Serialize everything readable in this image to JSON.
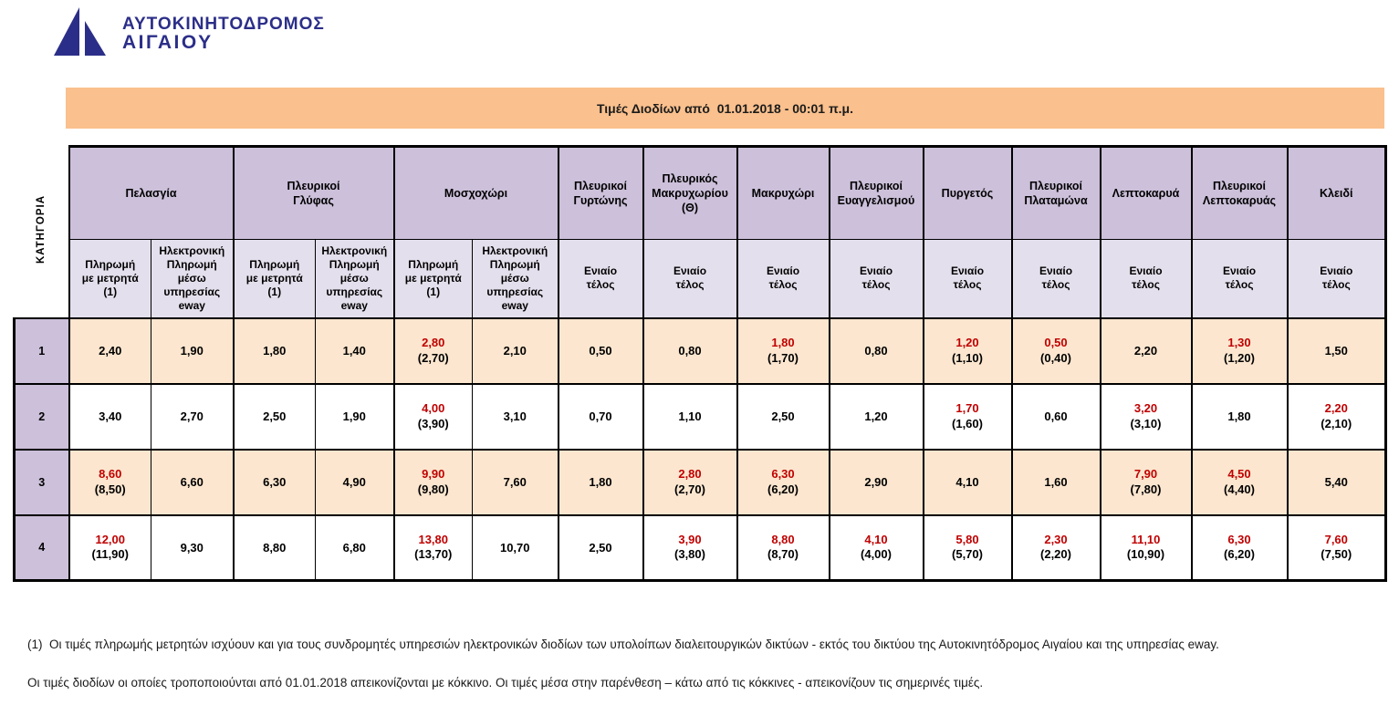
{
  "logo": {
    "line1": "ΑΥΤΟΚΙΝΗΤΟΔΡΟΜΟΣ",
    "line2": "ΑΙΓΑΙΟΥ"
  },
  "title_bar": {
    "text": "Τιμές Διοδίων από  01.01.2018 - 00:01 π.μ."
  },
  "colors": {
    "logo_blue": "#2b2e88",
    "title_bar_bg": "#FAC08D",
    "station_header_bg": "#CCC0DA",
    "subheader_bg": "#E4DFEC",
    "category_cell_bg": "#CCC0DA",
    "odd_row_bg": "#FCE6CF",
    "even_row_bg": "#FFFFFF",
    "changed_price_red": "#C00000"
  },
  "toll_table": {
    "category_header": "ΚΑΤΗΓΟΡΙΑ",
    "sub_labels": {
      "cash": "Πληρωμή\nμε μετρητά\n(1)",
      "eway": "Ηλεκτρονική\nΠληρωμή\nμέσω\nυπηρεσίας\neway",
      "flat": "Ενιαίο\nτέλος"
    },
    "stations": [
      {
        "name": "Πελασγία",
        "cols": [
          "cash",
          "eway"
        ]
      },
      {
        "name": "Πλευρικοί\nΓλύφας",
        "cols": [
          "cash",
          "eway"
        ]
      },
      {
        "name": "Μοσχοχώρι",
        "cols": [
          "cash",
          "eway"
        ]
      },
      {
        "name": "Πλευρικοί\nΓυρτώνης",
        "cols": [
          "flat"
        ]
      },
      {
        "name": "Πλευρικός\nΜακρυχωρίου\n(Θ)",
        "cols": [
          "flat"
        ]
      },
      {
        "name": "Μακρυχώρι",
        "cols": [
          "flat"
        ]
      },
      {
        "name": "Πλευρικοί\nΕυαγγελισμού",
        "cols": [
          "flat"
        ]
      },
      {
        "name": "Πυργετός",
        "cols": [
          "flat"
        ]
      },
      {
        "name": "Πλευρικοί\nΠλαταμώνα",
        "cols": [
          "flat"
        ]
      },
      {
        "name": "Λεπτοκαρυά",
        "cols": [
          "flat"
        ]
      },
      {
        "name": "Πλευρικοί\nΛεπτοκαρυάς",
        "cols": [
          "flat"
        ]
      },
      {
        "name": "Κλειδί",
        "cols": [
          "flat"
        ]
      }
    ],
    "rows": [
      {
        "category": "1",
        "cells": [
          "2,40",
          "1,90",
          "1,80",
          "1,40",
          {
            "new": "2,80",
            "current": "(2,70)"
          },
          "2,10",
          "0,50",
          "0,80",
          {
            "new": "1,80",
            "current": "(1,70)"
          },
          "0,80",
          {
            "new": "1,20",
            "current": "(1,10)"
          },
          {
            "new": "0,50",
            "current": "(0,40)"
          },
          "2,20",
          {
            "new": "1,30",
            "current": "(1,20)"
          },
          "1,50"
        ]
      },
      {
        "category": "2",
        "cells": [
          "3,40",
          "2,70",
          "2,50",
          "1,90",
          {
            "new": "4,00",
            "current": "(3,90)"
          },
          "3,10",
          "0,70",
          "1,10",
          "2,50",
          "1,20",
          {
            "new": "1,70",
            "current": "(1,60)"
          },
          "0,60",
          {
            "new": "3,20",
            "current": "(3,10)"
          },
          "1,80",
          {
            "new": "2,20",
            "current": "(2,10)"
          }
        ]
      },
      {
        "category": "3",
        "cells": [
          {
            "new": "8,60",
            "current": "(8,50)"
          },
          "6,60",
          "6,30",
          "4,90",
          {
            "new": "9,90",
            "current": "(9,80)"
          },
          "7,60",
          "1,80",
          {
            "new": "2,80",
            "current": "(2,70)"
          },
          {
            "new": "6,30",
            "current": "(6,20)"
          },
          "2,90",
          "4,10",
          "1,60",
          {
            "new": "7,90",
            "current": "(7,80)"
          },
          {
            "new": "4,50",
            "current": "(4,40)"
          },
          "5,40"
        ]
      },
      {
        "category": "4",
        "cells": [
          {
            "new": "12,00",
            "current": "(11,90)"
          },
          "9,30",
          "8,80",
          "6,80",
          {
            "new": "13,80",
            "current": "(13,70)"
          },
          "10,70",
          "2,50",
          {
            "new": "3,90",
            "current": "(3,80)"
          },
          {
            "new": "8,80",
            "current": "(8,70)"
          },
          {
            "new": "4,10",
            "current": "(4,00)"
          },
          {
            "new": "5,80",
            "current": "(5,70)"
          },
          {
            "new": "2,30",
            "current": "(2,20)"
          },
          {
            "new": "11,10",
            "current": "(10,90)"
          },
          {
            "new": "6,30",
            "current": "(6,20)"
          },
          {
            "new": "7,60",
            "current": "(7,50)"
          }
        ]
      }
    ]
  },
  "footnotes": [
    "(1)  Οι τιμές πληρωμής μετρητών ισχύουν και για τους συνδρομητές υπηρεσιών ηλεκτρονικών διοδίων των υπολοίπων διαλειτουργικών δικτύων - εκτός του δικτύου της Αυτοκινητόδρομος Αιγαίου και της υπηρεσίας eway.",
    "Οι τιμές διοδίων οι οποίες τροποποιούνται από 01.01.2018 απεικονίζονται με κόκκινο. Οι τιμές μέσα στην παρένθεση – κάτω από τις κόκκινες - απεικονίζουν τις σημερινές τιμές."
  ]
}
